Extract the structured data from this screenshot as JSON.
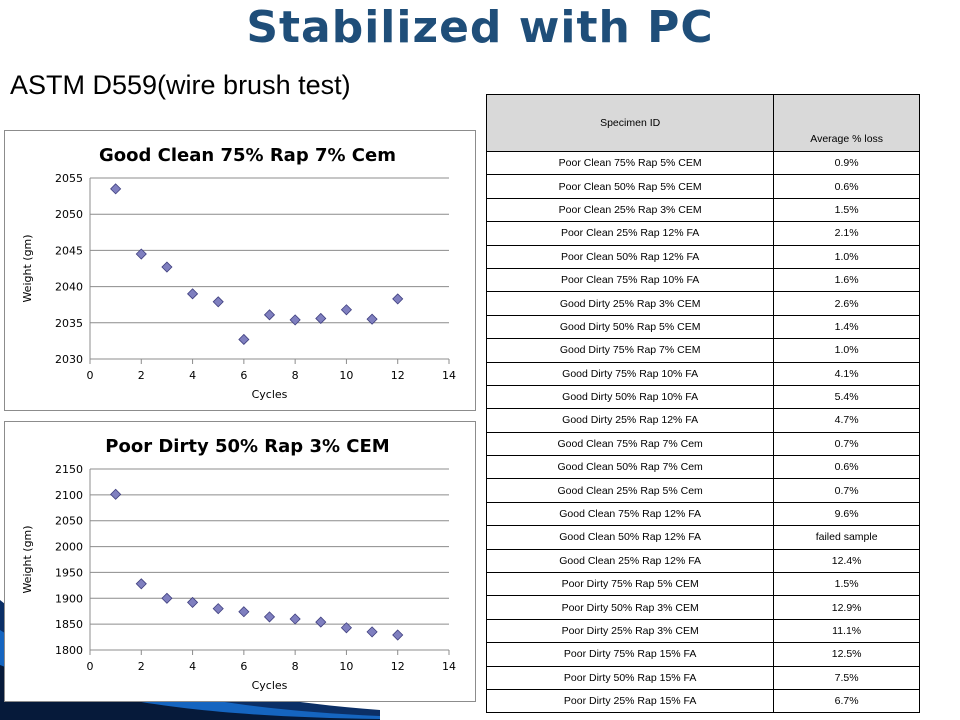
{
  "slide": {
    "title": "Stabilized with PC",
    "subtitle": "ASTM D559(wire brush test)"
  },
  "chart_data": [
    {
      "type": "scatter",
      "title": "Good Clean 75% Rap 7% Cem",
      "xlabel": "Cycles",
      "ylabel": "Weight (gm)",
      "xlim": [
        0,
        14
      ],
      "ylim": [
        2030,
        2055
      ],
      "xticks": [
        0,
        2,
        4,
        6,
        8,
        10,
        12,
        14
      ],
      "yticks": [
        2030,
        2035,
        2040,
        2045,
        2050,
        2055
      ],
      "x": [
        1,
        2,
        3,
        4,
        5,
        6,
        7,
        8,
        9,
        10,
        11,
        12
      ],
      "y": [
        2053.5,
        2044.5,
        2042.7,
        2039.0,
        2037.9,
        2032.7,
        2036.1,
        2035.4,
        2035.6,
        2036.8,
        2035.5,
        2038.3
      ],
      "grid": "horizontal",
      "marker_color": "#7f7fbf"
    },
    {
      "type": "scatter",
      "title": "Poor Dirty 50% Rap 3% CEM",
      "xlabel": "Cycles",
      "ylabel": "Weight (gm)",
      "xlim": [
        0,
        14
      ],
      "ylim": [
        1800,
        2150
      ],
      "xticks": [
        0,
        2,
        4,
        6,
        8,
        10,
        12,
        14
      ],
      "yticks": [
        1800,
        1850,
        1900,
        1950,
        2000,
        2050,
        2100,
        2150
      ],
      "x": [
        1,
        2,
        3,
        4,
        5,
        6,
        7,
        8,
        9,
        10,
        11,
        12
      ],
      "y": [
        2101,
        1928,
        1900,
        1892,
        1880,
        1874,
        1864,
        1860,
        1854,
        1843,
        1835,
        1829
      ],
      "grid": "horizontal",
      "marker_color": "#7f7fbf"
    }
  ],
  "table": {
    "headers": [
      "Specimen ID",
      "Average % loss"
    ],
    "rows": [
      [
        "Poor Clean 75% Rap 5% CEM",
        "0.9%"
      ],
      [
        "Poor Clean 50% Rap 5% CEM",
        "0.6%"
      ],
      [
        "Poor Clean 25% Rap 3% CEM",
        "1.5%"
      ],
      [
        "Poor Clean 25% Rap 12% FA",
        "2.1%"
      ],
      [
        "Poor Clean 50% Rap 12% FA",
        "1.0%"
      ],
      [
        "Poor Clean 75% Rap 10% FA",
        "1.6%"
      ],
      [
        "Good Dirty 25% Rap 3% CEM",
        "2.6%"
      ],
      [
        "Good Dirty 50% Rap 5% CEM",
        "1.4%"
      ],
      [
        "Good Dirty 75% Rap 7% CEM",
        "1.0%"
      ],
      [
        "Good Dirty 75% Rap 10% FA",
        "4.1%"
      ],
      [
        "Good Dirty 50% Rap 10% FA",
        "5.4%"
      ],
      [
        "Good Dirty 25% Rap 12% FA",
        "4.7%"
      ],
      [
        "Good Clean 75% Rap 7% Cem",
        "0.7%"
      ],
      [
        "Good Clean 50% Rap 7% Cem",
        "0.6%"
      ],
      [
        "Good Clean 25% Rap 5% Cem",
        "0.7%"
      ],
      [
        "Good Clean 75% Rap 12% FA",
        "9.6%"
      ],
      [
        "Good Clean 50% Rap 12% FA",
        "failed sample"
      ],
      [
        "Good Clean 25% Rap 12% FA",
        "12.4%"
      ],
      [
        "Poor Dirty 75% Rap 5% CEM",
        "1.5%"
      ],
      [
        "Poor Dirty 50% Rap 3% CEM",
        "12.9%"
      ],
      [
        "Poor Dirty 25% Rap 3% CEM",
        "11.1%"
      ],
      [
        "Poor Dirty 75% Rap 15% FA",
        "12.5%"
      ],
      [
        "Poor Dirty 50% Rap 15% FA",
        "7.5%"
      ],
      [
        "Poor Dirty 25% Rap 15% FA",
        "6.7%"
      ]
    ]
  },
  "colors": {
    "title": "#1f4e79",
    "marker": "#7f7fbf",
    "marker_stroke": "#3f3f7f",
    "header_bg": "#d9d9d9",
    "deco_dark": "#0b2f66",
    "deco_blue": "#1565c0"
  }
}
